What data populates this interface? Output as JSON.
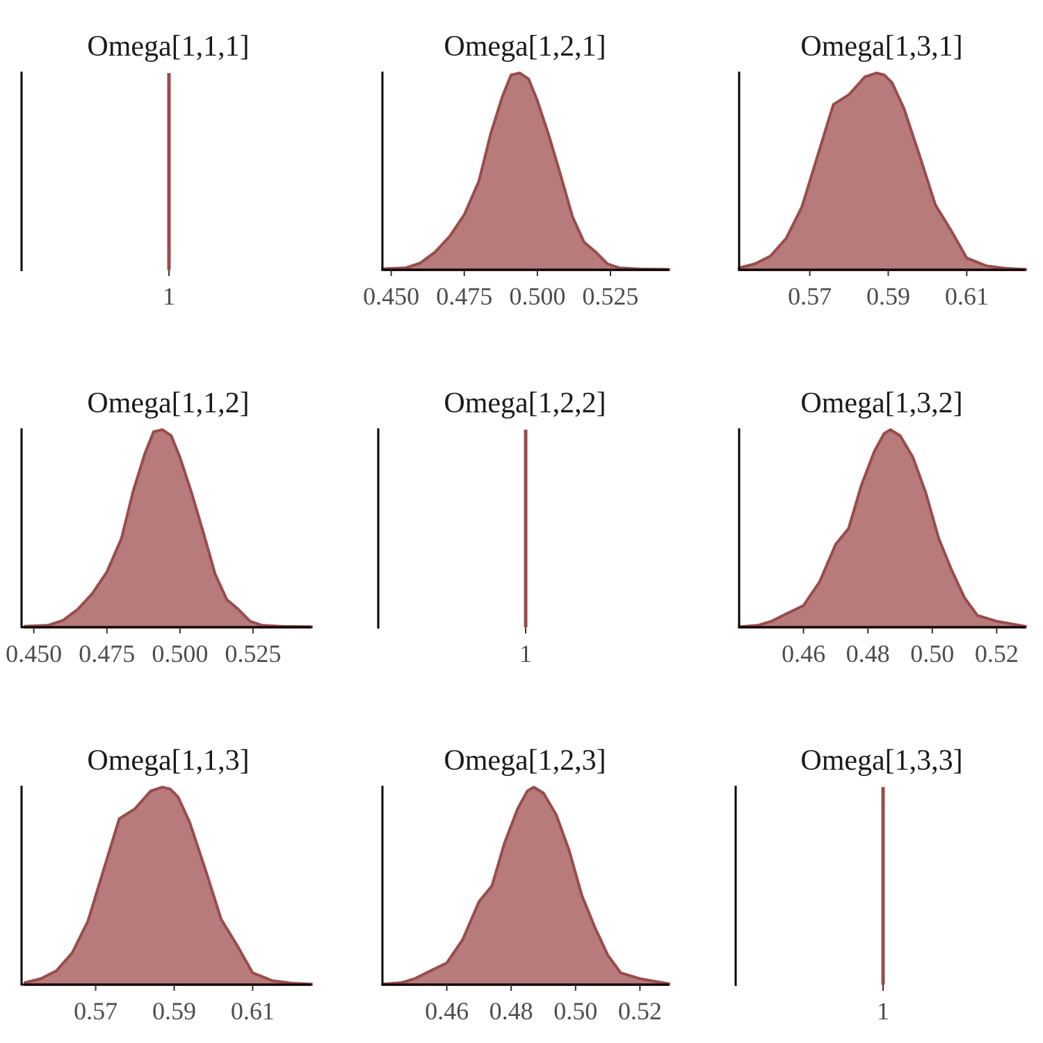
{
  "colors": {
    "fill": "#b77b7b",
    "line": "#9b4b4b",
    "axis": "#000000",
    "tick_text": "#4d4d4d"
  },
  "chart_data": [
    {
      "title": "Omega[1,1,1]",
      "type": "point-mass",
      "value": 1,
      "ticks": [
        1
      ],
      "tick_labels": [
        "1"
      ]
    },
    {
      "title": "Omega[1,2,1]",
      "type": "area",
      "xlim": [
        0.447,
        0.545
      ],
      "ticks": [
        0.45,
        0.475,
        0.5,
        0.525
      ],
      "tick_labels": [
        "0.450",
        "0.475",
        "0.500",
        "0.525"
      ],
      "x": [
        0.447,
        0.455,
        0.46,
        0.465,
        0.47,
        0.475,
        0.48,
        0.484,
        0.488,
        0.491,
        0.494,
        0.497,
        0.5,
        0.504,
        0.508,
        0.512,
        0.516,
        0.52,
        0.524,
        0.528,
        0.535,
        0.545
      ],
      "y": [
        0.005,
        0.01,
        0.035,
        0.09,
        0.17,
        0.28,
        0.45,
        0.69,
        0.88,
        0.99,
        1.0,
        0.97,
        0.86,
        0.68,
        0.48,
        0.27,
        0.14,
        0.09,
        0.03,
        0.01,
        0.004,
        0.002
      ]
    },
    {
      "title": "Omega[1,3,1]",
      "type": "area",
      "xlim": [
        0.552,
        0.625
      ],
      "ticks": [
        0.57,
        0.59,
        0.61
      ],
      "tick_labels": [
        "0.57",
        "0.59",
        "0.61"
      ],
      "x": [
        0.552,
        0.556,
        0.56,
        0.564,
        0.568,
        0.572,
        0.576,
        0.58,
        0.584,
        0.587,
        0.589,
        0.591,
        0.594,
        0.598,
        0.602,
        0.606,
        0.61,
        0.615,
        0.62,
        0.625
      ],
      "y": [
        0.01,
        0.03,
        0.07,
        0.16,
        0.32,
        0.58,
        0.84,
        0.89,
        0.98,
        1.0,
        0.99,
        0.95,
        0.82,
        0.58,
        0.33,
        0.2,
        0.06,
        0.02,
        0.007,
        0.002
      ]
    },
    {
      "title": "Omega[1,1,2]",
      "type": "area",
      "xlim": [
        0.447,
        0.545
      ],
      "ticks": [
        0.45,
        0.475,
        0.5,
        0.525
      ],
      "tick_labels": [
        "0.450",
        "0.475",
        "0.500",
        "0.525"
      ],
      "x": [
        0.447,
        0.455,
        0.46,
        0.465,
        0.47,
        0.475,
        0.48,
        0.484,
        0.488,
        0.491,
        0.494,
        0.497,
        0.5,
        0.504,
        0.508,
        0.512,
        0.516,
        0.52,
        0.524,
        0.528,
        0.535,
        0.545
      ],
      "y": [
        0.005,
        0.01,
        0.035,
        0.09,
        0.17,
        0.28,
        0.45,
        0.69,
        0.88,
        0.99,
        1.0,
        0.97,
        0.86,
        0.68,
        0.48,
        0.27,
        0.14,
        0.09,
        0.03,
        0.01,
        0.004,
        0.002
      ]
    },
    {
      "title": "Omega[1,2,2]",
      "type": "point-mass",
      "value": 1,
      "ticks": [
        1
      ],
      "tick_labels": [
        "1"
      ]
    },
    {
      "title": "Omega[1,3,2]",
      "type": "area",
      "xlim": [
        0.44,
        0.529
      ],
      "ticks": [
        0.46,
        0.48,
        0.5,
        0.52
      ],
      "tick_labels": [
        "0.46",
        "0.48",
        "0.50",
        "0.52"
      ],
      "x": [
        0.44,
        0.446,
        0.45,
        0.455,
        0.46,
        0.465,
        0.47,
        0.474,
        0.478,
        0.482,
        0.485,
        0.487,
        0.49,
        0.494,
        0.498,
        0.502,
        0.506,
        0.51,
        0.514,
        0.52,
        0.529
      ],
      "y": [
        0.002,
        0.01,
        0.03,
        0.07,
        0.11,
        0.23,
        0.42,
        0.5,
        0.72,
        0.89,
        0.98,
        1.0,
        0.97,
        0.86,
        0.68,
        0.45,
        0.29,
        0.15,
        0.06,
        0.03,
        0.004
      ]
    },
    {
      "title": "Omega[1,1,3]",
      "type": "area",
      "xlim": [
        0.552,
        0.625
      ],
      "ticks": [
        0.57,
        0.59,
        0.61
      ],
      "tick_labels": [
        "0.57",
        "0.59",
        "0.61"
      ],
      "x": [
        0.552,
        0.556,
        0.56,
        0.564,
        0.568,
        0.572,
        0.576,
        0.58,
        0.584,
        0.587,
        0.589,
        0.591,
        0.594,
        0.598,
        0.602,
        0.606,
        0.61,
        0.615,
        0.62,
        0.625
      ],
      "y": [
        0.01,
        0.03,
        0.07,
        0.16,
        0.32,
        0.58,
        0.84,
        0.89,
        0.98,
        1.0,
        0.99,
        0.95,
        0.82,
        0.58,
        0.33,
        0.2,
        0.06,
        0.02,
        0.007,
        0.002
      ]
    },
    {
      "title": "Omega[1,2,3]",
      "type": "area",
      "xlim": [
        0.44,
        0.529
      ],
      "ticks": [
        0.46,
        0.48,
        0.5,
        0.52
      ],
      "tick_labels": [
        "0.46",
        "0.48",
        "0.50",
        "0.52"
      ],
      "x": [
        0.44,
        0.446,
        0.45,
        0.455,
        0.46,
        0.465,
        0.47,
        0.474,
        0.478,
        0.482,
        0.485,
        0.487,
        0.49,
        0.494,
        0.498,
        0.502,
        0.506,
        0.51,
        0.514,
        0.52,
        0.529
      ],
      "y": [
        0.002,
        0.01,
        0.03,
        0.07,
        0.11,
        0.23,
        0.42,
        0.5,
        0.72,
        0.89,
        0.98,
        1.0,
        0.97,
        0.86,
        0.68,
        0.45,
        0.29,
        0.15,
        0.06,
        0.03,
        0.004
      ]
    },
    {
      "title": "Omega[1,3,3]",
      "type": "point-mass",
      "value": 1,
      "ticks": [
        1
      ],
      "tick_labels": [
        "1"
      ]
    }
  ]
}
